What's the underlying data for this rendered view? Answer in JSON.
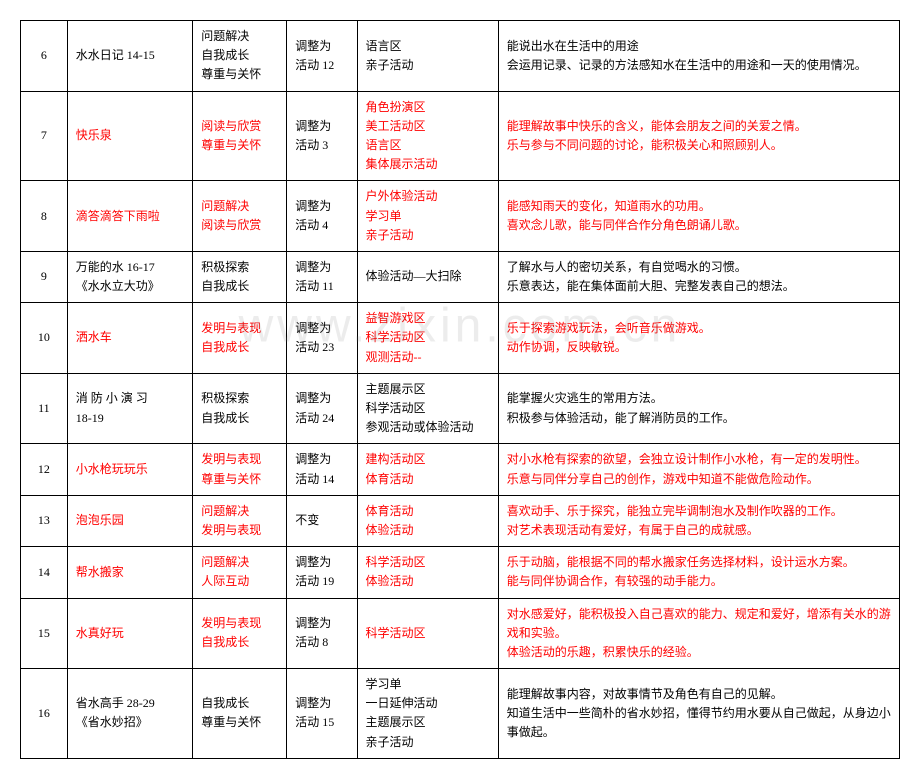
{
  "watermark": "www.zixin.com.cn",
  "rows": [
    {
      "num": "6",
      "title": "水水日记 14-15",
      "titleRed": false,
      "cat1": "问题解决",
      "cat2": "自我成长",
      "cat3": "尊重与关怀",
      "catRed": false,
      "adj1": "调整为",
      "adj2": "活动 12",
      "area1": "语言区",
      "area2": "亲子活动",
      "area3": "",
      "area4": "",
      "areaRed": false,
      "desc1": "能说出水在生活中的用途",
      "desc2": "会运用记录、记录的方法感知水在生活中的用途和一天的使用情况。",
      "descRed": false
    },
    {
      "num": "7",
      "title": "快乐泉",
      "titleRed": true,
      "cat1": "阅读与欣赏",
      "cat2": "尊重与关怀",
      "cat3": "",
      "catRed": true,
      "adj1": "调整为",
      "adj2": "活动 3",
      "area1": "角色扮演区",
      "area2": "美工活动区",
      "area3": "语言区",
      "area4": "集体展示活动",
      "areaRed": true,
      "desc1": "能理解故事中快乐的含义，能体会朋友之间的关爱之情。",
      "desc2": "乐与参与不同问题的讨论，能积极关心和照顾别人。",
      "descRed": true
    },
    {
      "num": "8",
      "title": "滴答滴答下雨啦",
      "titleRed": true,
      "cat1": "问题解决",
      "cat2": "阅读与欣赏",
      "cat3": "",
      "catRed": true,
      "adj1": "调整为",
      "adj2": "活动 4",
      "area1": "户外体验活动",
      "area2": "学习单",
      "area3": "亲子活动",
      "area4": "",
      "areaRed": true,
      "desc1": "能感知雨天的变化，知道雨水的功用。",
      "desc2": "喜欢念儿歌，能与同伴合作分角色朗诵儿歌。",
      "descRed": true
    },
    {
      "num": "9",
      "title": "万能的水 16-17\n《水水立大功》",
      "titleRed": false,
      "cat1": "积极探索",
      "cat2": "自我成长",
      "cat3": "",
      "catRed": false,
      "adj1": "调整为",
      "adj2": "活动 11",
      "area1": "体验活动—大扫除",
      "area2": "",
      "area3": "",
      "area4": "",
      "areaRed": false,
      "desc1": "了解水与人的密切关系，有自觉喝水的习惯。",
      "desc2": "乐意表达，能在集体面前大胆、完整发表自己的想法。",
      "descRed": false
    },
    {
      "num": "10",
      "title": "洒水车",
      "titleRed": true,
      "cat1": "发明与表现",
      "cat2": "自我成长",
      "cat3": "",
      "catRed": true,
      "adj1": "调整为",
      "adj2": "活动 23",
      "area1": "益智游戏区",
      "area2": "科学活动区",
      "area3": "观测活动--",
      "area4": "",
      "areaRed": true,
      "desc1": "乐于探索游戏玩法，会听音乐做游戏。",
      "desc2": "动作协调，反映敏锐。",
      "descRed": true
    },
    {
      "num": "11",
      "title": "消 防 小 演 习\n18-19",
      "titleRed": false,
      "cat1": "积极探索",
      "cat2": "自我成长",
      "cat3": "",
      "catRed": false,
      "adj1": "调整为",
      "adj2": "活动 24",
      "area1": "主题展示区",
      "area2": "科学活动区",
      "area3": "参观活动或体验活动",
      "area4": "",
      "areaRed": false,
      "desc1": "能掌握火灾逃生的常用方法。",
      "desc2": "积极参与体验活动，能了解消防员的工作。",
      "descRed": false
    },
    {
      "num": "12",
      "title": "小水枪玩玩乐",
      "titleRed": true,
      "cat1": "发明与表现",
      "cat2": "尊重与关怀",
      "cat3": "",
      "catRed": true,
      "adj1": "调整为",
      "adj2": "活动 14",
      "area1": "建构活动区",
      "area2": "体育活动",
      "area3": "",
      "area4": "",
      "areaRed": true,
      "desc1": "对小水枪有探索的欲望，会独立设计制作小水枪，有一定的发明性。",
      "desc2": "乐意与同伴分享自己的创作，游戏中知道不能做危险动作。",
      "descRed": true
    },
    {
      "num": "13",
      "title": "泡泡乐园",
      "titleRed": true,
      "cat1": "问题解决",
      "cat2": "发明与表现",
      "cat3": "",
      "catRed": true,
      "adj1": "不变",
      "adj2": "",
      "area1": "体育活动",
      "area2": "体验活动",
      "area3": "",
      "area4": "",
      "areaRed": true,
      "desc1": "喜欢动手、乐于探究，能独立完毕调制泡水及制作吹器的工作。",
      "desc2": "对艺术表现活动有爱好，有属于自己的成就感。",
      "descRed": true
    },
    {
      "num": "14",
      "title": "帮水搬家",
      "titleRed": true,
      "cat1": "问题解决",
      "cat2": "人际互动",
      "cat3": "",
      "catRed": true,
      "adj1": "调整为",
      "adj2": "活动 19",
      "area1": "科学活动区",
      "area2": "体验活动",
      "area3": "",
      "area4": "",
      "areaRed": true,
      "desc1": "乐于动脑，能根据不同的帮水搬家任务选择材料，设计运水方案。",
      "desc2": "能与同伴协调合作，有较强的动手能力。",
      "descRed": true
    },
    {
      "num": "15",
      "title": "水真好玩",
      "titleRed": true,
      "cat1": "发明与表现",
      "cat2": "自我成长",
      "cat3": "",
      "catRed": true,
      "adj1": "调整为",
      "adj2": "活动 8",
      "area1": "科学活动区",
      "area2": "",
      "area3": "",
      "area4": "",
      "areaRed": true,
      "desc1": "对水感爱好，能积极投入自己喜欢的能力、规定和爱好，增添有关水的游戏和实验。",
      "desc2": "体验活动的乐趣，积累快乐的经验。",
      "descRed": true
    },
    {
      "num": "16",
      "title": "省水高手 28-29\n《省水妙招》",
      "titleRed": false,
      "cat1": "自我成长",
      "cat2": "尊重与关怀",
      "cat3": "",
      "catRed": false,
      "adj1": "调整为",
      "adj2": "活动 15",
      "area1": "学习单",
      "area2": "一日延伸活动",
      "area3": "主题展示区",
      "area4": "亲子活动",
      "areaRed": false,
      "desc1": "能理解故事内容，对故事情节及角色有自己的见解。",
      "desc2": "知道生活中一些简朴的省水妙招，懂得节约用水要从自己做起，从身边小事做起。",
      "descRed": false
    }
  ]
}
